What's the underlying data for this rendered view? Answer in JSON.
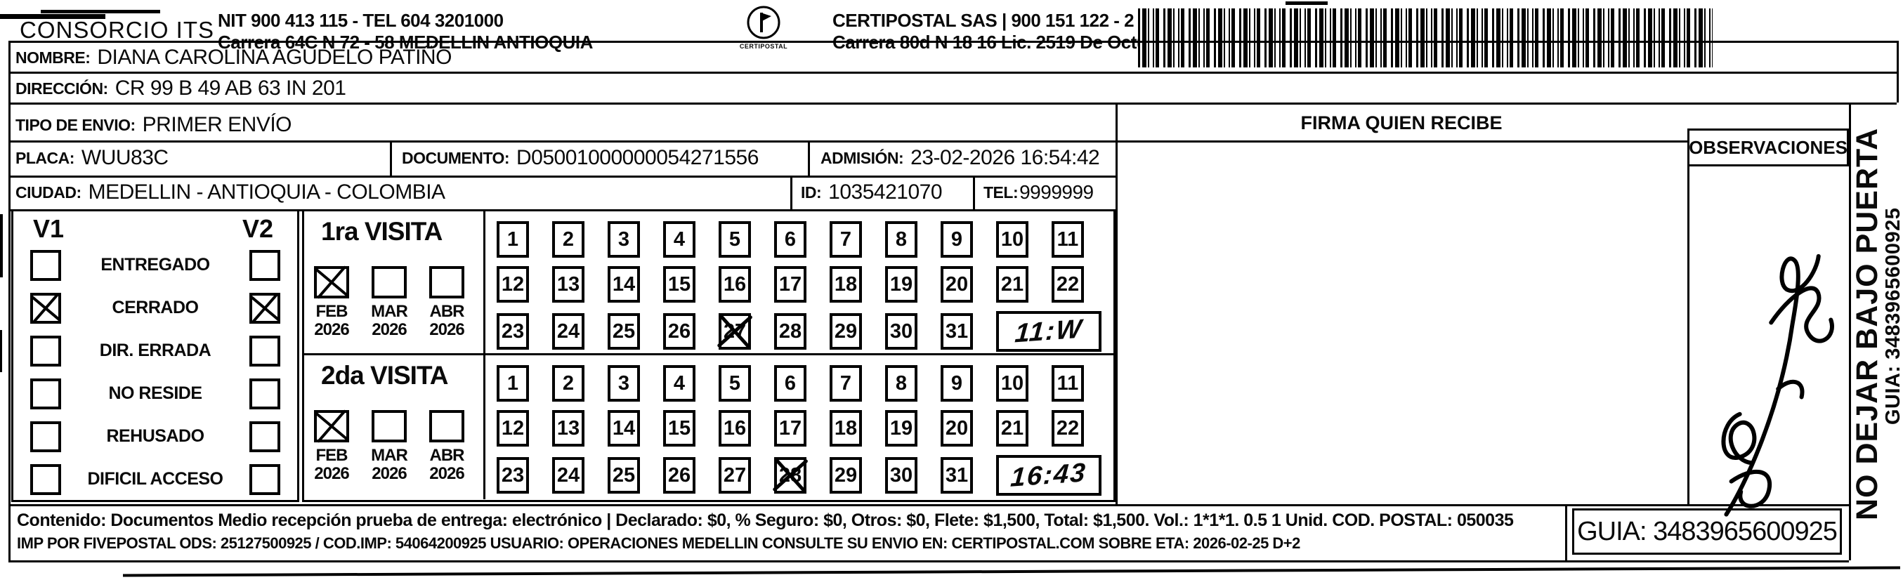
{
  "header": {
    "company": "CONSORCIO ITS",
    "company_info_line1": "NIT 900 413 115 - TEL 604 3201000",
    "company_info_line2": "Carrera 64C N 72 - 58 MEDELLIN ANTIOQUIA",
    "logo_caption": "CERTIPOSTAL",
    "operator_line1": "CERTIPOSTAL SAS | 900 151 122 - 2",
    "operator_line2": "Carrera 80d N 18 16  Lic. 2519 De Octubre 23 De 2015"
  },
  "recipient": {
    "name_label": "NOMBRE:",
    "name": "DIANA CAROLINA AGUDELO PATIÑO",
    "address_label": "DIRECCIÓN:",
    "address": "CR 99 B 49 AB   63 IN 201",
    "shipment_type_label": "TIPO DE ENVIO:",
    "shipment_type": "PRIMER ENVÍO",
    "placa_label": "PLACA:",
    "placa": "WUU83C",
    "document_label": "DOCUMENTO:",
    "document": "D05001000000054271556",
    "admission_label": "ADMISIÓN:",
    "admission": "23-02-2026 16:54:42",
    "city_label": "CIUDAD:",
    "city": "MEDELLIN - ANTIOQUIA - COLOMBIA",
    "id_label": "ID:",
    "id": "1035421070",
    "tel_label": "TEL:",
    "tel": "9999999"
  },
  "signature_section": {
    "firma_label": "FIRMA QUIEN RECIBE",
    "observaciones_label": "OBSERVACIONES"
  },
  "status_panel": {
    "col1": "V1",
    "col2": "V2",
    "items": [
      {
        "label": "ENTREGADO",
        "v1": false,
        "v2": false
      },
      {
        "label": "CERRADO",
        "v1": true,
        "v2": true
      },
      {
        "label": "DIR. ERRADA",
        "v1": false,
        "v2": false
      },
      {
        "label": "NO RESIDE",
        "v1": false,
        "v2": false
      },
      {
        "label": "REHUSADO",
        "v1": false,
        "v2": false
      },
      {
        "label": "DIFICIL ACCESO",
        "v1": false,
        "v2": false
      }
    ]
  },
  "visits": [
    {
      "title": "1ra VISITA",
      "months": [
        {
          "month": "FEB",
          "year": "2026",
          "checked": true
        },
        {
          "month": "MAR",
          "year": "2026",
          "checked": false
        },
        {
          "month": "ABR",
          "year": "2026",
          "checked": false
        }
      ],
      "day_rows": [
        [
          1,
          2,
          3,
          4,
          5,
          6,
          7,
          8,
          9,
          10,
          11
        ],
        [
          12,
          13,
          14,
          15,
          16,
          17,
          18,
          19,
          20,
          21,
          22
        ],
        [
          23,
          24,
          25,
          26,
          27,
          28,
          29,
          30,
          31
        ]
      ],
      "crossed_day": 27,
      "time": "11:W"
    },
    {
      "title": "2da VISITA",
      "months": [
        {
          "month": "FEB",
          "year": "2026",
          "checked": true
        },
        {
          "month": "MAR",
          "year": "2026",
          "checked": false
        },
        {
          "month": "ABR",
          "year": "2026",
          "checked": false
        }
      ],
      "day_rows": [
        [
          1,
          2,
          3,
          4,
          5,
          6,
          7,
          8,
          9,
          10,
          11
        ],
        [
          12,
          13,
          14,
          15,
          16,
          17,
          18,
          19,
          20,
          21,
          22
        ],
        [
          23,
          24,
          25,
          26,
          27,
          28,
          29,
          30,
          31
        ]
      ],
      "crossed_day": 28,
      "time": "16:43"
    }
  ],
  "side_strip": {
    "warning": "NO DEJAR BAJO PUERTA",
    "guia": "GUIA: 3483965600925"
  },
  "footer": {
    "line1": "Contenido: Documentos Medio recepción prueba de entrega: electrónico | Declarado: $0, % Seguro: $0, Otros: $0, Flete: $1,500, Total: $1,500. Vol.: 1*1*1. 0.5  1 Unid. COD. POSTAL: 050035",
    "line2": "IMP POR FIVEPOSTAL ODS: 25127500925 / COD.IMP: 54064200925 USUARIO: OPERACIONES MEDELLIN CONSULTE SU ENVIO EN: CERTIPOSTAL.COM SOBRE ETA: 2026-02-25 D+2",
    "guia_box": "GUIA: 3483965600925"
  }
}
